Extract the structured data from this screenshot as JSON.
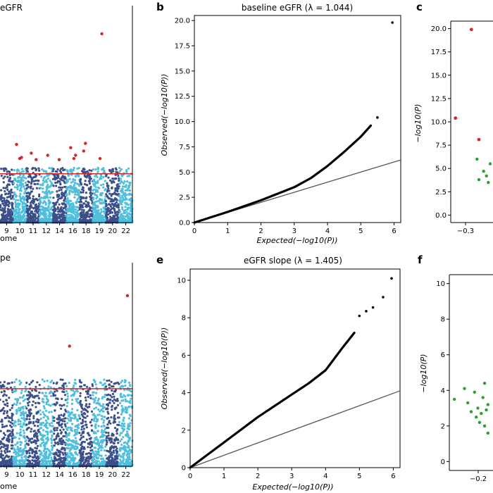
{
  "colors": {
    "manhattan_dark": "#3b4f8a",
    "manhattan_light": "#4fbfdc",
    "significant_point": "#d62728",
    "threshold_line": "#d62728",
    "qq_point": "#000000",
    "qq_reference": "#555555",
    "volcano_point": "#2ca02c"
  },
  "chart_data": [
    {
      "panel": "a",
      "type": "scatter",
      "title": "eGFR",
      "xlabel": "ome",
      "x_tick_labels": [
        "9",
        "10",
        "11",
        "12",
        "14",
        "16",
        "18",
        "19",
        "20",
        "22"
      ],
      "ylim": [
        0,
        20
      ],
      "significance_threshold_y": 4.5,
      "significant_points": [
        {
          "chrom": "10",
          "y": 7.2
        },
        {
          "chrom": "10",
          "y": 6.0
        },
        {
          "chrom": "10",
          "y": 5.9
        },
        {
          "chrom": "11",
          "y": 6.4
        },
        {
          "chrom": "11",
          "y": 5.8
        },
        {
          "chrom": "12",
          "y": 6.2
        },
        {
          "chrom": "14",
          "y": 5.8
        },
        {
          "chrom": "16",
          "y": 6.9
        },
        {
          "chrom": "16",
          "y": 6.2
        },
        {
          "chrom": "16",
          "y": 5.9
        },
        {
          "chrom": "18",
          "y": 7.3
        },
        {
          "chrom": "18",
          "y": 6.6
        },
        {
          "chrom": "19",
          "y": 17.4
        },
        {
          "chrom": "19",
          "y": 5.9
        }
      ]
    },
    {
      "panel": "b",
      "type": "scatter",
      "title": "baseline eGFR (λ = 1.044)",
      "xlabel": "Expected(−log10(P))",
      "ylabel": "Observed(−log10(P))",
      "xlim": [
        0,
        6.2
      ],
      "ylim": [
        0,
        20.5
      ],
      "x_ticks": [
        0,
        1,
        2,
        3,
        4,
        5,
        6
      ],
      "y_ticks": [
        0.0,
        2.5,
        5.0,
        7.5,
        10.0,
        12.5,
        15.0,
        17.5,
        20.0
      ],
      "lambda": 1.044,
      "qq_curve": [
        [
          0,
          0
        ],
        [
          1,
          1.05
        ],
        [
          2,
          2.2
        ],
        [
          3,
          3.5
        ],
        [
          3.5,
          4.4
        ],
        [
          4,
          5.6
        ],
        [
          4.5,
          7.0
        ],
        [
          5,
          8.5
        ],
        [
          5.3,
          9.6
        ]
      ],
      "outliers": [
        [
          5.5,
          10.4
        ],
        [
          5.95,
          19.8
        ]
      ],
      "reference_line": [
        [
          0,
          0
        ],
        [
          6.2,
          6.2
        ]
      ]
    },
    {
      "panel": "c",
      "type": "scatter",
      "xlabel": "",
      "ylabel": "−log10(P)",
      "ylim": [
        -0.8,
        20.8
      ],
      "y_ticks": [
        0.0,
        2.5,
        5.0,
        7.5,
        10.0,
        12.5,
        15.0,
        17.5,
        20.0
      ],
      "x_tick_labels": [
        "−0.3"
      ],
      "red_points": [
        [
          -0.35,
          10.4
        ],
        [
          -0.18,
          19.9
        ],
        [
          -0.1,
          8.1
        ]
      ],
      "green_points": [
        [
          -0.12,
          6.0
        ],
        [
          -0.1,
          3.8
        ],
        [
          -0.05,
          4.7
        ],
        [
          -0.02,
          4.2
        ],
        [
          0.0,
          3.5
        ],
        [
          0.02,
          5.5
        ]
      ]
    },
    {
      "panel": "d",
      "type": "scatter",
      "title": "pe",
      "xlabel": "ome",
      "x_tick_labels": [
        "9",
        "10",
        "11",
        "12",
        "14",
        "16",
        "18",
        "19",
        "20",
        "22"
      ],
      "ylim": [
        0,
        10.5
      ],
      "significance_threshold_y": 4.0,
      "significant_points": [
        {
          "chrom": "16",
          "y": 6.2
        },
        {
          "chrom": "22",
          "y": 8.8
        }
      ]
    },
    {
      "panel": "e",
      "type": "scatter",
      "title": "eGFR slope (λ = 1.405)",
      "xlabel": "Expected(−log10(P))",
      "ylabel": "Observed(−log10(P))",
      "xlim": [
        0,
        6.2
      ],
      "ylim": [
        0,
        10.6
      ],
      "x_ticks": [
        0,
        1,
        2,
        3,
        4,
        5,
        6
      ],
      "y_ticks": [
        0,
        2,
        4,
        6,
        8,
        10
      ],
      "lambda": 1.405,
      "qq_curve": [
        [
          0,
          0
        ],
        [
          1,
          1.35
        ],
        [
          2,
          2.7
        ],
        [
          3,
          3.9
        ],
        [
          3.5,
          4.5
        ],
        [
          4,
          5.2
        ],
        [
          4.5,
          6.4
        ],
        [
          4.85,
          7.2
        ]
      ],
      "outliers": [
        [
          5.0,
          8.1
        ],
        [
          5.2,
          8.35
        ],
        [
          5.4,
          8.55
        ],
        [
          5.7,
          9.1
        ],
        [
          5.95,
          10.1
        ]
      ],
      "reference_line": [
        [
          0,
          0
        ],
        [
          6.2,
          4.1
        ]
      ]
    },
    {
      "panel": "f",
      "type": "scatter",
      "xlabel": "",
      "ylabel": "−log10(P)",
      "ylim": [
        -0.5,
        10.5
      ],
      "y_ticks": [
        0,
        2,
        4,
        6,
        8,
        10
      ],
      "x_tick_labels": [
        "−0.2"
      ],
      "green_points": [
        [
          -0.28,
          3.5
        ],
        [
          -0.22,
          4.1
        ],
        [
          -0.2,
          3.3
        ],
        [
          -0.18,
          2.8
        ],
        [
          -0.16,
          3.9
        ],
        [
          -0.15,
          2.5
        ],
        [
          -0.14,
          3.0
        ],
        [
          -0.13,
          2.2
        ],
        [
          -0.12,
          2.7
        ],
        [
          -0.11,
          3.6
        ],
        [
          -0.1,
          2.0
        ],
        [
          -0.1,
          4.4
        ],
        [
          -0.09,
          2.9
        ],
        [
          -0.08,
          1.6
        ],
        [
          -0.08,
          3.2
        ]
      ]
    }
  ],
  "panel_letters": {
    "b": "b",
    "c": "c",
    "e": "e",
    "f": "f"
  }
}
